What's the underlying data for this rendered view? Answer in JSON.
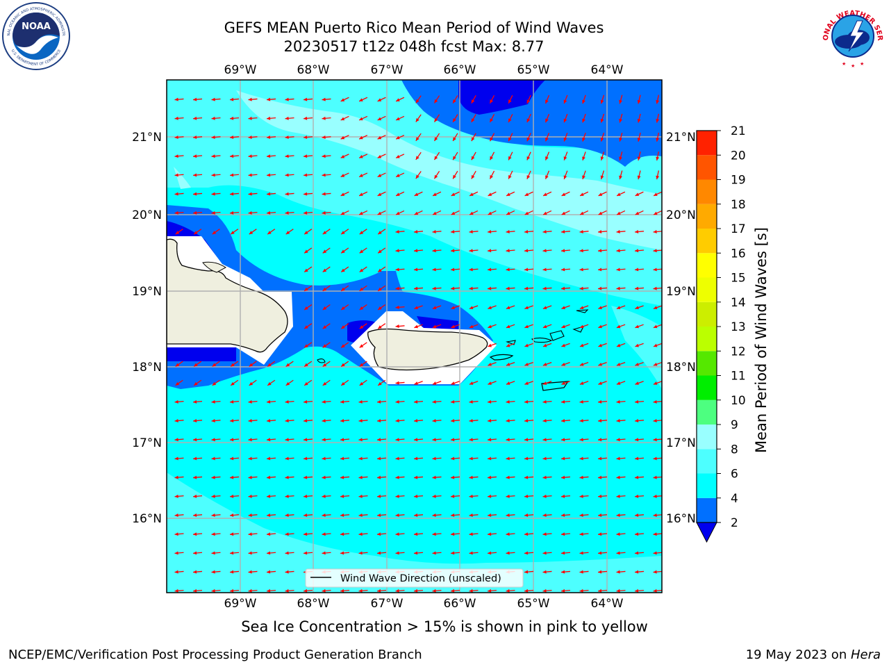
{
  "header": {
    "title_line1": "GEFS MEAN Puerto Rico Mean Period of Wind Waves",
    "title_line2": "20230517 t12z 048h fcst   Max: 8.77"
  },
  "logos": {
    "left": "NOAA",
    "left_ring_top": "NATIONAL OCEANIC AND ATMOSPHERIC ADMINISTRATION",
    "left_ring_bottom": "U.S. DEPARTMENT OF COMMERCE",
    "right_ring": "NATIONAL WEATHER SERVICE"
  },
  "map": {
    "lon_labels": [
      "69°W",
      "68°W",
      "67°W",
      "66°W",
      "65°W",
      "64°W"
    ],
    "lat_labels": [
      "21°N",
      "20°N",
      "19°N",
      "18°N",
      "17°N",
      "16°N"
    ],
    "legend_label": "Wind Wave Direction (unscaled)",
    "colors": {
      "band_2_4": "#0070ff",
      "band_lt2": "#0000ee",
      "band_4_6": "#00ffff",
      "band_6_8": "#4dffff",
      "band_8_9": "#99ffff",
      "land": "#efefdf",
      "arrow": "#ff0000",
      "grid": "#b0b0b0"
    }
  },
  "colorbar": {
    "title": "Mean Period of Wind Waves [s]",
    "ticks": [
      "2",
      "4",
      "6",
      "8",
      "9",
      "10",
      "11",
      "12",
      "13",
      "14",
      "15",
      "16",
      "17",
      "18",
      "19",
      "20",
      "21"
    ],
    "segments": [
      {
        "from": 2,
        "to": 4,
        "color": "#0070ff"
      },
      {
        "from": 4,
        "to": 6,
        "color": "#00ffff"
      },
      {
        "from": 6,
        "to": 8,
        "color": "#4dffff"
      },
      {
        "from": 8,
        "to": 9,
        "color": "#99ffff"
      },
      {
        "from": 9,
        "to": 10,
        "color": "#4dff80"
      },
      {
        "from": 10,
        "to": 11,
        "color": "#00ee00"
      },
      {
        "from": 11,
        "to": 12,
        "color": "#55e800"
      },
      {
        "from": 12,
        "to": 13,
        "color": "#bbff00"
      },
      {
        "from": 13,
        "to": 14,
        "color": "#ccee00"
      },
      {
        "from": 14,
        "to": 15,
        "color": "#eeff00"
      },
      {
        "from": 15,
        "to": 16,
        "color": "#ffff00"
      },
      {
        "from": 16,
        "to": 17,
        "color": "#ffcc00"
      },
      {
        "from": 17,
        "to": 18,
        "color": "#ffaa00"
      },
      {
        "from": 18,
        "to": 19,
        "color": "#ff8800"
      },
      {
        "from": 19,
        "to": 20,
        "color": "#ff5500"
      },
      {
        "from": 20,
        "to": 21,
        "color": "#ff2200"
      },
      {
        "from": 21,
        "to": 22,
        "color": "#ff0000"
      }
    ],
    "underflow_color": "#0000ee"
  },
  "subtitle": "Sea Ice Concentration > 15% is shown in pink to yellow",
  "footer": {
    "left": "NCEP/EMC/Verification Post Processing Product Generation Branch",
    "right_prefix": "19 May 2023 on ",
    "right_machine": "Hera"
  }
}
